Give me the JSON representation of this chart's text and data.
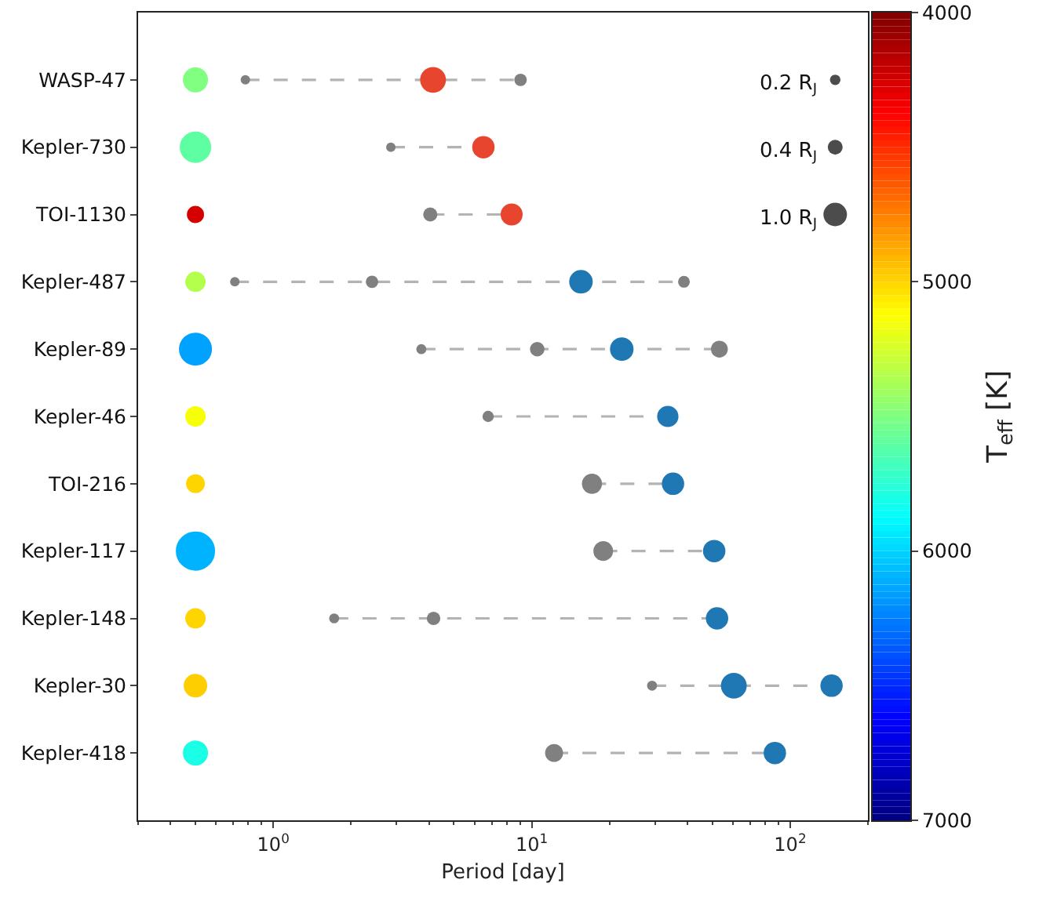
{
  "chart_data": {
    "type": "scatter",
    "orientation": "horizontal",
    "xlabel": "Period [day]",
    "clabel": "T$_{eff}$ [K]",
    "log": "x",
    "line_style": "dashed",
    "xlim": [
      0.3,
      200
    ],
    "xticks": [
      {
        "value": 1,
        "label": "10$^{0}$"
      },
      {
        "value": 10,
        "label": "10$^{1}$"
      },
      {
        "value": 100,
        "label": "10$^{2}$"
      }
    ],
    "clim": [
      7000,
      4000
    ],
    "cticks": [
      4000,
      5000,
      6000,
      7000
    ],
    "size_legend": [
      {
        "value": 0.2,
        "label": "0.2 R$_{J}$"
      },
      {
        "value": 0.4,
        "label": "0.4 R$_{J}$"
      },
      {
        "value": 1.0,
        "label": "1.0 R$_{J}$"
      }
    ],
    "categories": [
      "WASP-47",
      "Kepler-730",
      "TOI-1130",
      "Kepler-487",
      "Kepler-89",
      "Kepler-46",
      "TOI-216",
      "Kepler-117",
      "Kepler-148",
      "Kepler-30",
      "Kepler-418"
    ],
    "series": [
      {
        "values": [
          0.5,
          0.5,
          0.5,
          0.5,
          0.5,
          0.5,
          0.5,
          0.5,
          0.5,
          0.5,
          0.5
        ],
        "cvalues": [
          5500,
          5600,
          4250,
          5350,
          6150,
          5150,
          5000,
          6100,
          5000,
          4980,
          5800
        ],
        "colors": [
          "#80ff80",
          "#5effa1",
          "#d40000",
          "#b3ff4d",
          "#00a1ff",
          "#f7ff00",
          "#ffd400",
          "#00b3ff",
          "#ffd400",
          "#ffce00",
          "#1affe6"
        ],
        "sizes": [
          1.0,
          1.6,
          0.44,
          0.64,
          1.78,
          0.64,
          0.54,
          2.56,
          0.64,
          0.87,
          1.0
        ]
      },
      {
        "values": [
          0.78,
          2.85,
          4.05,
          0.71,
          3.74,
          6.78,
          17.1,
          18.9,
          1.72,
          29.2,
          12.2
        ],
        "colors": [
          "#808080",
          "#808080",
          "#808080",
          "#808080",
          "#808080",
          "#808080",
          "#808080",
          "#808080",
          "#808080",
          "#808080",
          "#808080"
        ],
        "sizes": [
          0.16,
          0.16,
          0.36,
          0.16,
          0.18,
          0.23,
          0.73,
          0.7,
          0.18,
          0.18,
          0.58
        ]
      },
      {
        "values": [
          4.15,
          6.5,
          8.36,
          2.41,
          10.5,
          33.6,
          35.2,
          50.8,
          4.17,
          60.5,
          87.2
        ],
        "colors": [
          "#e8452f",
          "#e8452f",
          "#e8452f",
          "#808080",
          "#808080",
          "#1f77b4",
          "#1f77b4",
          "#1f77b4",
          "#808080",
          "#1f77b4",
          "#1f77b4"
        ],
        "sizes": [
          1.2,
          0.9,
          0.87,
          0.28,
          0.38,
          0.82,
          0.9,
          0.9,
          0.33,
          1.2,
          0.9
        ]
      },
      {
        "values": [
          9.05,
          null,
          null,
          15.5,
          22.3,
          null,
          null,
          null,
          52.1,
          144.5,
          null
        ],
        "colors": [
          "#808080",
          null,
          null,
          "#1f77b4",
          "#1f77b4",
          null,
          null,
          null,
          "#1f77b4",
          "#1f77b4",
          null
        ],
        "sizes": [
          0.28,
          null,
          null,
          1.0,
          1.0,
          null,
          null,
          null,
          0.9,
          0.9,
          null
        ]
      },
      {
        "values": [
          null,
          null,
          null,
          38.8,
          53.2,
          null,
          null,
          null,
          null,
          null,
          null
        ],
        "colors": [
          null,
          null,
          null,
          "#808080",
          "#808080",
          null,
          null,
          null,
          null,
          null,
          null
        ],
        "sizes": [
          null,
          null,
          null,
          0.25,
          0.51,
          null,
          null,
          null,
          null,
          null,
          null
        ]
      }
    ]
  }
}
